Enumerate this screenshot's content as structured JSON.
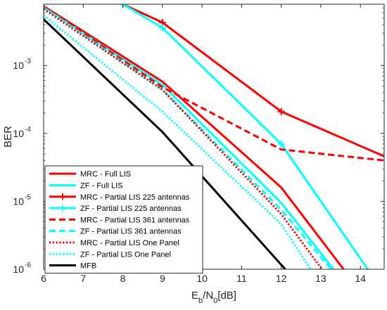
{
  "chart_data": {
    "type": "line",
    "xlabel": "E_b/N_0[dB]",
    "ylabel": "BER",
    "xlim": [
      6,
      14.6
    ],
    "ylim": [
      1e-06,
      0.008
    ],
    "yscale": "log",
    "grid": false,
    "legend_position": "bottom-left",
    "x_ticks": [
      6,
      7,
      8,
      9,
      10,
      11,
      12,
      13,
      14
    ],
    "x_tick_labels": [
      "6",
      "7",
      "8",
      "9",
      "10",
      "11",
      "12",
      "13",
      "14"
    ],
    "y_ticks": [
      1e-06,
      1e-05,
      0.0001,
      0.001
    ],
    "y_tick_labels": [
      {
        "base": "10",
        "exp": "-6"
      },
      {
        "base": "10",
        "exp": "-5"
      },
      {
        "base": "10",
        "exp": "-4"
      },
      {
        "base": "10",
        "exp": "-3"
      }
    ],
    "series": [
      {
        "name": "MRC - Full LIS",
        "color": "#ff0000",
        "dash": "solid",
        "marker": "none",
        "x": [
          6,
          9,
          12,
          13.7
        ],
        "y": [
          0.0075,
          0.00058,
          1.6e-05,
          8e-07
        ]
      },
      {
        "name": "ZF - Full LIS",
        "color": "#00ffff",
        "dash": "solid",
        "marker": "none",
        "x": [
          6,
          9,
          12,
          13.45
        ],
        "y": [
          0.0072,
          0.00052,
          9.5e-06,
          8e-07
        ]
      },
      {
        "name": "MRC - Partial LIS 225 antennas",
        "color": "#ff0000",
        "dash": "solid",
        "marker": "plus",
        "x": [
          8,
          9,
          12,
          14.6
        ],
        "y": [
          0.008,
          0.0043,
          0.00021,
          4.6e-05
        ]
      },
      {
        "name": "ZF - Partial LIS 225 antennas",
        "color": "#00ffff",
        "dash": "solid",
        "marker": "plus",
        "x": [
          8,
          9,
          12,
          14.3
        ],
        "y": [
          0.008,
          0.0036,
          7e-05,
          8e-07
        ]
      },
      {
        "name": "MRC - Partial LIS 361 antennas",
        "color": "#ff0000",
        "dash": "dashed",
        "marker": "none",
        "x": [
          6,
          9,
          12,
          14.6
        ],
        "y": [
          0.0075,
          0.00048,
          5.8e-05,
          4e-05
        ]
      },
      {
        "name": "ZF - Partial LIS 361 antennas",
        "color": "#00ffff",
        "dash": "dashed",
        "marker": "none",
        "x": [
          6,
          9,
          12,
          13.4
        ],
        "y": [
          0.0072,
          0.00044,
          7.5e-06,
          8e-07
        ]
      },
      {
        "name": "MRC - Partial LIS One Panel",
        "color": "#ff0000",
        "dash": "dotted",
        "marker": "none",
        "x": [
          6,
          9,
          12,
          13.15
        ],
        "y": [
          0.0068,
          0.00044,
          6.5e-06,
          8e-07
        ]
      },
      {
        "name": "ZF - Partial LIS One Panel",
        "color": "#00ffff",
        "dash": "dotted",
        "marker": "none",
        "x": [
          6,
          9,
          12,
          12.85
        ],
        "y": [
          0.0055,
          0.00021,
          4.6e-06,
          8e-07
        ]
      },
      {
        "name": "MFB",
        "color": "#000000",
        "dash": "solid",
        "marker": "none",
        "x": [
          6,
          9,
          12.25
        ],
        "y": [
          0.0048,
          0.000105,
          8e-07
        ]
      }
    ]
  }
}
